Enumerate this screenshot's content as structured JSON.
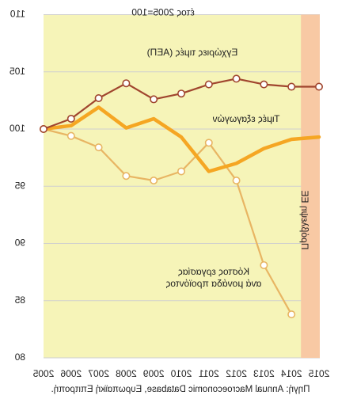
{
  "chart_data": {
    "type": "line",
    "orientation": "vertically-mirrored",
    "source_note": "Πηγή: Annual Macroeconomic Database, Ευρωπαϊκή Επιτροπή.",
    "base_note": "έτος 2005=100",
    "forecast_label": "Πρόβλεψη ΕΕ",
    "forecast_start": "2014",
    "categories": [
      "2005",
      "2006",
      "2007",
      "2008",
      "2009",
      "2010",
      "2011",
      "2012",
      "2013",
      "2014",
      "2015"
    ],
    "y_ticks": [
      80,
      85,
      90,
      95,
      100,
      105,
      110
    ],
    "y_tick_labels": [
      "80",
      "85",
      "90",
      "95",
      "100",
      "105",
      "110"
    ],
    "ylim": [
      80,
      110
    ],
    "grid": true,
    "series": [
      {
        "name": "Κόστος εργασίας ανά μονάδα προϊόντος",
        "color": "#e8b563",
        "markers": true,
        "values": [
          100,
          99.4,
          98.4,
          95.9,
          95.5,
          96.3,
          98.8,
          95.5,
          88.1,
          83.8,
          null
        ]
      },
      {
        "name": "Τιμές εξαγωγών",
        "color": "#f5a623",
        "markers": false,
        "values": [
          100,
          100.3,
          101.9,
          100.1,
          100.9,
          99.3,
          96.3,
          97.0,
          98.3,
          99.1,
          99.3
        ]
      },
      {
        "name": "Εγχώριες τιμές (ΑΕΠ)",
        "color": "#a0452e",
        "markers": true,
        "values": [
          100,
          100.9,
          102.7,
          104.0,
          102.6,
          103.1,
          103.9,
          104.4,
          103.9,
          103.7,
          103.7
        ]
      }
    ]
  }
}
